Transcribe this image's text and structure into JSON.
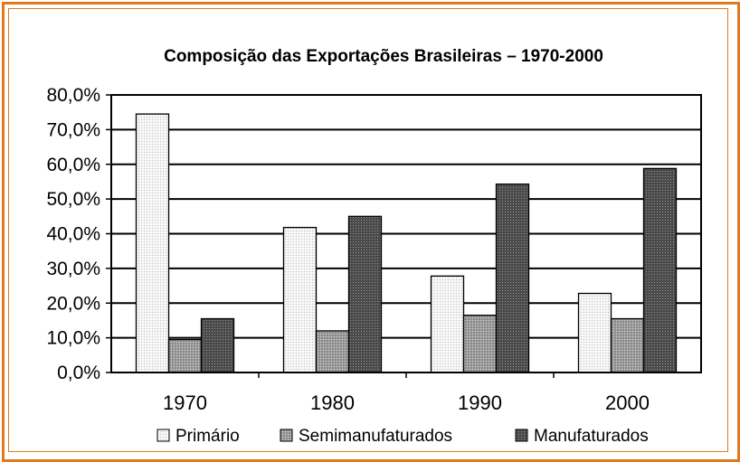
{
  "chart_data": {
    "type": "bar",
    "title": "Composição das Exportações Brasileiras – 1970-2000",
    "xlabel": "",
    "ylabel": "",
    "categories": [
      "1970",
      "1980",
      "1990",
      "2000"
    ],
    "series": [
      {
        "name": "Primário",
        "values": [
          74.5,
          41.8,
          27.8,
          22.8
        ],
        "pattern": "light-dots",
        "color": "#f4f4f4"
      },
      {
        "name": "Semimanufaturados",
        "values": [
          9.5,
          12.0,
          16.5,
          15.5
        ],
        "pattern": "medium-dots",
        "color": "#a8a8a8"
      },
      {
        "name": "Manufaturados",
        "values": [
          15.5,
          45.0,
          54.3,
          58.8
        ],
        "pattern": "dark-dots",
        "color": "#555555"
      }
    ],
    "ylim": [
      0,
      80
    ],
    "yticks": [
      0,
      10,
      20,
      30,
      40,
      50,
      60,
      70,
      80
    ],
    "ytick_labels": [
      "0,0%",
      "10,0%",
      "20,0%",
      "30,0%",
      "40,0%",
      "50,0%",
      "60,0%",
      "70,0%",
      "80,0%"
    ],
    "grid": "horizontal",
    "legend": "bottom",
    "frame_color": "#e07a20"
  }
}
